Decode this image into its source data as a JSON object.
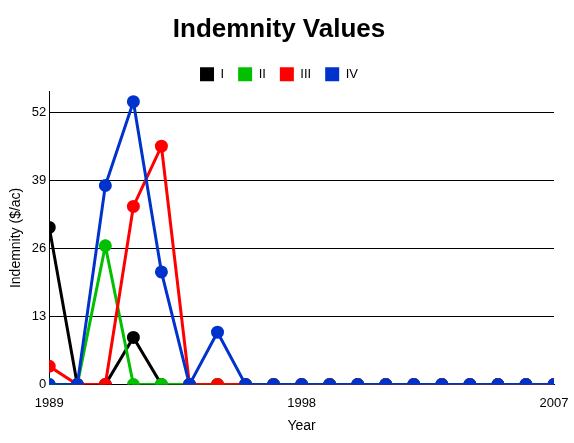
{
  "chart_data": {
    "type": "line",
    "title": "Indemnity Values",
    "x_label": "Year",
    "y_label": "Indemnity ($/ac)",
    "x": [
      1989,
      1990,
      1991,
      1992,
      1993,
      1994,
      1995,
      1996,
      1997,
      1998,
      1999,
      2000,
      2001,
      2002,
      2003,
      2004,
      2005,
      2006,
      2007
    ],
    "series": [
      {
        "name": "I",
        "color": "#000000",
        "values": [
          30,
          0,
          0,
          9,
          0,
          0,
          0,
          0,
          0,
          0,
          0,
          0,
          0,
          0,
          0,
          0,
          0,
          0,
          0
        ]
      },
      {
        "name": "II",
        "color": "#00c000",
        "values": [
          0,
          0,
          26.5,
          0,
          0,
          0,
          0,
          0,
          0,
          0,
          0,
          0,
          0,
          0,
          0,
          0,
          0,
          0,
          0
        ]
      },
      {
        "name": "III",
        "color": "#ff0000",
        "values": [
          3.5,
          0,
          0,
          34,
          45.5,
          0,
          0,
          0,
          0,
          0,
          0,
          0,
          0,
          0,
          0,
          0,
          0,
          0,
          0
        ]
      },
      {
        "name": "IV",
        "color": "#0033cc",
        "values": [
          0,
          0,
          38,
          54,
          21.5,
          0,
          10,
          0,
          0,
          0,
          0,
          0,
          0,
          0,
          0,
          0,
          0,
          0,
          0
        ]
      }
    ],
    "xlim": [
      1989,
      2007
    ],
    "xticks": [
      1989,
      1998,
      2007
    ],
    "ylim": [
      0,
      56
    ],
    "yticks": [
      0,
      13,
      26,
      39,
      52
    ],
    "grid": true,
    "legend": "top",
    "marker": "circle"
  }
}
